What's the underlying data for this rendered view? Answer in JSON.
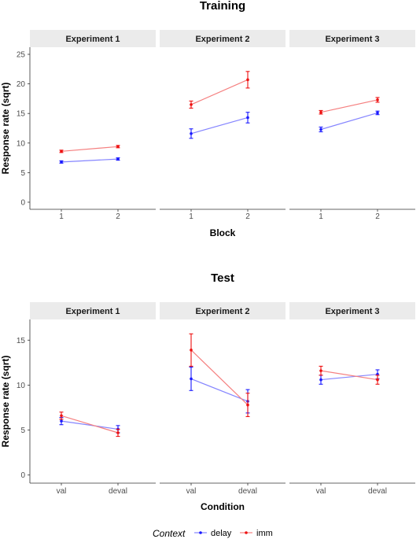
{
  "colors": {
    "delay": "#1a1aff",
    "imm": "#ee1111",
    "delay_line": "#8585ff",
    "imm_line": "#f58080",
    "strip": "#ebebeb",
    "axis": "#333333"
  },
  "legend": {
    "title": "Context",
    "items": [
      {
        "key": "delay",
        "label": "delay"
      },
      {
        "key": "imm",
        "label": "imm"
      }
    ]
  },
  "chart_data": [
    {
      "type": "line",
      "title": "Training",
      "xlabel": "Block",
      "ylabel": "Response rate (sqrt)",
      "ylim": [
        -1.2,
        26.2
      ],
      "yticks": [
        0,
        5,
        10,
        15,
        20,
        25
      ],
      "categories": [
        "1",
        "2"
      ],
      "panels": [
        {
          "label": "Experiment 1",
          "series": [
            {
              "name": "delay",
              "values": [
                6.8,
                7.3
              ],
              "err": [
                0.2,
                0.2
              ]
            },
            {
              "name": "imm",
              "values": [
                8.6,
                9.4
              ],
              "err": [
                0.2,
                0.2
              ]
            }
          ]
        },
        {
          "label": "Experiment 2",
          "series": [
            {
              "name": "delay",
              "values": [
                11.6,
                14.3
              ],
              "err": [
                0.8,
                0.9
              ]
            },
            {
              "name": "imm",
              "values": [
                16.5,
                20.7
              ],
              "err": [
                0.6,
                1.4
              ]
            }
          ]
        },
        {
          "label": "Experiment 3",
          "series": [
            {
              "name": "delay",
              "values": [
                12.3,
                15.1
              ],
              "err": [
                0.4,
                0.3
              ]
            },
            {
              "name": "imm",
              "values": [
                15.2,
                17.3
              ],
              "err": [
                0.3,
                0.4
              ]
            }
          ]
        }
      ]
    },
    {
      "type": "line",
      "title": "Test",
      "xlabel": "Condition",
      "ylabel": "Response rate (sqrt)",
      "ylim": [
        -0.9,
        17.3
      ],
      "yticks": [
        0,
        5,
        10,
        15
      ],
      "categories": [
        "val",
        "deval"
      ],
      "panels": [
        {
          "label": "Experiment 1",
          "series": [
            {
              "name": "delay",
              "values": [
                6.0,
                5.1
              ],
              "err": [
                0.4,
                0.4
              ]
            },
            {
              "name": "imm",
              "values": [
                6.6,
                4.7
              ],
              "err": [
                0.4,
                0.4
              ]
            }
          ]
        },
        {
          "label": "Experiment 2",
          "series": [
            {
              "name": "delay",
              "values": [
                10.7,
                8.2
              ],
              "err": [
                1.3,
                1.3
              ]
            },
            {
              "name": "imm",
              "values": [
                13.9,
                7.8
              ],
              "err": [
                1.8,
                1.3
              ]
            }
          ]
        },
        {
          "label": "Experiment 3",
          "series": [
            {
              "name": "delay",
              "values": [
                10.6,
                11.2
              ],
              "err": [
                0.5,
                0.5
              ]
            },
            {
              "name": "imm",
              "values": [
                11.6,
                10.6
              ],
              "err": [
                0.5,
                0.5
              ]
            }
          ]
        }
      ]
    }
  ]
}
